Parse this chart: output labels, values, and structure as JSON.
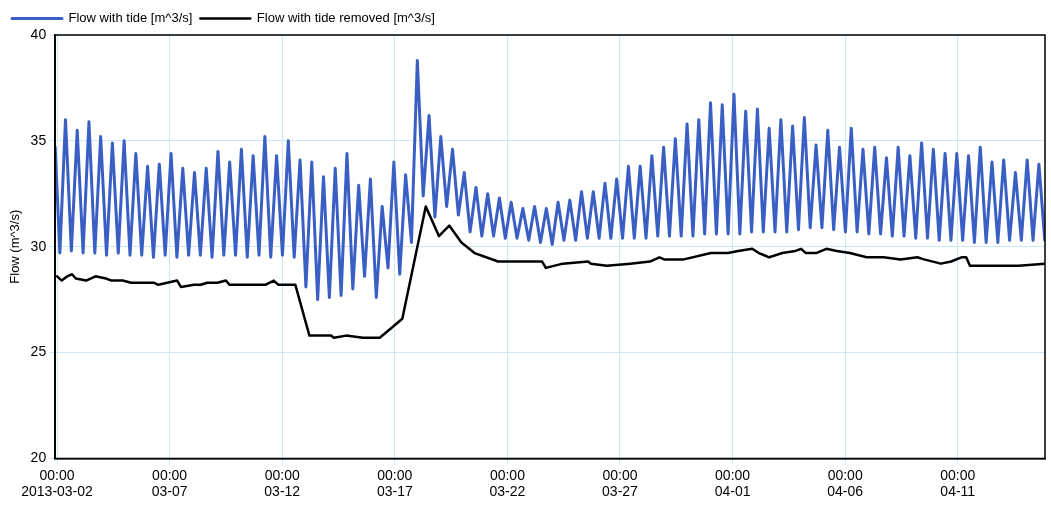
{
  "chart_data": {
    "type": "line",
    "ylabel": "Flow (m^3/s)",
    "xlim": [
      "2013-03-01T22:00",
      "2013-04-14T21:00"
    ],
    "xticks": [
      {
        "value": "2013-03-02",
        "label": "00:00\n2013-03-02"
      },
      {
        "value": "2013-03-07",
        "label": "00:00\n03-07"
      },
      {
        "value": "2013-03-12",
        "label": "00:00\n03-12"
      },
      {
        "value": "2013-03-17",
        "label": "00:00\n03-17"
      },
      {
        "value": "2013-03-22",
        "label": "00:00\n03-22"
      },
      {
        "value": "2013-03-27",
        "label": "00:00\n03-27"
      },
      {
        "value": "2013-04-01",
        "label": "00:00\n04-01"
      },
      {
        "value": "2013-04-06",
        "label": "00:00\n04-06"
      },
      {
        "value": "2013-04-11",
        "label": "00:00\n04-11"
      }
    ],
    "ylim": [
      20,
      40
    ],
    "yticks": [
      20,
      25,
      30,
      35,
      40
    ],
    "grid": true,
    "legend": "top left",
    "marker": "none",
    "line_style": "solid",
    "series": [
      {
        "name": "Flow with tide [m^3/s]",
        "color": "#3a5fc4",
        "x": [
          "2013-03-01T22:00",
          "2013-03-02T03:00",
          "2013-03-02T09:00",
          "2013-03-02T15:15",
          "2013-03-02T21:30",
          "2013-03-03T03:45",
          "2013-03-03T10:00",
          "2013-03-03T16:15",
          "2013-03-03T22:30",
          "2013-03-04T04:45",
          "2013-03-04T11:00",
          "2013-03-04T17:15",
          "2013-03-04T23:30",
          "2013-03-05T05:45",
          "2013-03-05T12:00",
          "2013-03-05T18:15",
          "2013-03-06T00:30",
          "2013-03-06T06:45",
          "2013-03-06T13:00",
          "2013-03-06T19:15",
          "2013-03-07T01:30",
          "2013-03-07T07:45",
          "2013-03-07T14:00",
          "2013-03-07T20:15",
          "2013-03-08T02:30",
          "2013-03-08T08:45",
          "2013-03-08T15:00",
          "2013-03-08T21:15",
          "2013-03-09T03:30",
          "2013-03-09T09:45",
          "2013-03-09T16:00",
          "2013-03-09T22:15",
          "2013-03-10T04:30",
          "2013-03-10T10:45",
          "2013-03-10T17:00",
          "2013-03-10T23:15",
          "2013-03-11T05:30",
          "2013-03-11T11:45",
          "2013-03-11T18:00",
          "2013-03-12T00:15",
          "2013-03-12T06:30",
          "2013-03-12T12:45",
          "2013-03-12T19:00",
          "2013-03-13T01:15",
          "2013-03-13T07:30",
          "2013-03-13T13:45",
          "2013-03-13T20:00",
          "2013-03-14T02:15",
          "2013-03-14T08:30",
          "2013-03-14T14:45",
          "2013-03-14T21:00",
          "2013-03-15T03:15",
          "2013-03-15T09:30",
          "2013-03-15T15:45",
          "2013-03-15T22:00",
          "2013-03-16T04:15",
          "2013-03-16T10:30",
          "2013-03-16T16:45",
          "2013-03-16T23:00",
          "2013-03-17T05:15",
          "2013-03-17T11:30",
          "2013-03-17T17:45",
          "2013-03-18T00:00",
          "2013-03-18T06:15",
          "2013-03-18T12:30",
          "2013-03-18T18:45",
          "2013-03-19T01:00",
          "2013-03-19T07:15",
          "2013-03-19T13:30",
          "2013-03-19T19:45",
          "2013-03-20T02:00",
          "2013-03-20T08:15",
          "2013-03-20T14:30",
          "2013-03-20T20:45",
          "2013-03-21T03:00",
          "2013-03-21T09:15",
          "2013-03-21T15:30",
          "2013-03-21T21:45",
          "2013-03-22T04:00",
          "2013-03-22T10:15",
          "2013-03-22T16:30",
          "2013-03-22T22:45",
          "2013-03-23T05:00",
          "2013-03-23T11:15",
          "2013-03-23T17:30",
          "2013-03-23T23:45",
          "2013-03-24T06:00",
          "2013-03-24T12:15",
          "2013-03-24T18:30",
          "2013-03-25T00:45",
          "2013-03-25T07:00",
          "2013-03-25T13:15",
          "2013-03-25T19:30",
          "2013-03-26T01:45",
          "2013-03-26T08:00",
          "2013-03-26T14:15",
          "2013-03-26T20:30",
          "2013-03-27T02:45",
          "2013-03-27T09:00",
          "2013-03-27T15:15",
          "2013-03-27T21:30",
          "2013-03-28T03:45",
          "2013-03-28T10:00",
          "2013-03-28T16:15",
          "2013-03-28T22:30",
          "2013-03-29T04:45",
          "2013-03-29T11:00",
          "2013-03-29T17:15",
          "2013-03-29T23:30",
          "2013-03-30T05:45",
          "2013-03-30T12:00",
          "2013-03-30T18:15",
          "2013-03-31T00:30",
          "2013-03-31T06:45",
          "2013-03-31T13:00",
          "2013-03-31T19:15",
          "2013-04-01T01:30",
          "2013-04-01T07:45",
          "2013-04-01T14:00",
          "2013-04-01T20:15",
          "2013-04-02T02:30",
          "2013-04-02T08:45",
          "2013-04-02T15:00",
          "2013-04-02T21:15",
          "2013-04-03T03:30",
          "2013-04-03T09:45",
          "2013-04-03T16:00",
          "2013-04-03T22:15",
          "2013-04-04T04:30",
          "2013-04-04T10:45",
          "2013-04-04T17:00",
          "2013-04-04T23:15",
          "2013-04-05T05:30",
          "2013-04-05T11:45",
          "2013-04-05T18:00",
          "2013-04-06T00:15",
          "2013-04-06T06:30",
          "2013-04-06T12:45",
          "2013-04-06T19:00",
          "2013-04-07T01:15",
          "2013-04-07T07:30",
          "2013-04-07T13:45",
          "2013-04-07T20:00",
          "2013-04-08T02:15",
          "2013-04-08T08:30",
          "2013-04-08T14:45",
          "2013-04-08T21:00",
          "2013-04-09T03:15",
          "2013-04-09T09:30",
          "2013-04-09T15:45",
          "2013-04-09T22:00",
          "2013-04-10T04:15",
          "2013-04-10T10:30",
          "2013-04-10T16:45",
          "2013-04-10T23:00",
          "2013-04-11T05:15",
          "2013-04-11T11:30",
          "2013-04-11T17:45",
          "2013-04-12T00:00",
          "2013-04-12T06:15",
          "2013-04-12T12:30",
          "2013-04-12T18:45",
          "2013-04-13T01:00",
          "2013-04-13T07:15",
          "2013-04-13T13:30",
          "2013-04-13T19:45",
          "2013-04-14T02:00",
          "2013-04-14T08:15",
          "2013-04-14T14:30",
          "2013-04-14T20:45"
        ],
        "values": [
          34.7,
          29.7,
          36.0,
          29.8,
          35.5,
          29.7,
          35.9,
          29.7,
          35.2,
          29.6,
          34.9,
          29.7,
          35.0,
          29.6,
          34.4,
          29.6,
          33.8,
          29.5,
          33.9,
          29.6,
          34.4,
          29.5,
          33.7,
          29.6,
          33.5,
          29.6,
          33.7,
          29.5,
          34.5,
          29.6,
          34.0,
          29.6,
          34.6,
          29.5,
          34.3,
          29.6,
          35.2,
          29.5,
          34.3,
          29.6,
          35.0,
          29.5,
          34.1,
          28.1,
          34.0,
          27.5,
          33.3,
          27.6,
          33.7,
          27.7,
          34.4,
          28.0,
          32.9,
          28.6,
          33.2,
          27.6,
          31.9,
          29.0,
          34.0,
          28.7,
          33.4,
          30.2,
          38.8,
          32.4,
          36.2,
          31.4,
          35.2,
          31.9,
          34.6,
          31.5,
          33.5,
          30.7,
          32.8,
          30.5,
          32.5,
          30.5,
          32.3,
          30.4,
          32.1,
          30.4,
          31.8,
          30.3,
          31.9,
          30.2,
          31.8,
          30.1,
          32.1,
          30.3,
          32.2,
          30.3,
          32.6,
          30.4,
          32.6,
          30.4,
          33.0,
          30.4,
          33.2,
          30.4,
          33.8,
          30.4,
          33.8,
          30.4,
          34.3,
          30.5,
          34.7,
          30.5,
          35.1,
          30.5,
          35.8,
          30.5,
          36.0,
          30.6,
          36.8,
          30.6,
          36.7,
          30.6,
          37.2,
          30.6,
          36.4,
          30.7,
          36.5,
          30.7,
          35.6,
          30.7,
          36.0,
          30.7,
          35.7,
          30.8,
          36.1,
          30.9,
          34.8,
          30.9,
          35.5,
          30.8,
          34.7,
          30.7,
          35.6,
          30.7,
          34.6,
          30.6,
          34.7,
          30.6,
          34.2,
          30.5,
          34.7,
          30.5,
          34.3,
          30.4,
          34.9,
          30.4,
          34.6,
          30.3,
          34.4,
          30.3,
          34.4,
          30.3,
          34.3,
          30.2,
          34.7,
          30.2,
          34.0,
          30.2,
          34.1,
          30.3,
          33.5,
          30.3,
          34.1,
          30.3,
          33.9,
          30.3
        ]
      },
      {
        "name": "Flow with tide removed [m^3/s]",
        "color": "#000000",
        "x": [
          "2013-03-02T00:00",
          "2013-03-02T05:00",
          "2013-03-02T11:00",
          "2013-03-02T16:00",
          "2013-03-02T20:00",
          "2013-03-03T07:00",
          "2013-03-03T17:00",
          "2013-03-04T04:00",
          "2013-03-04T10:00",
          "2013-03-04T22:00",
          "2013-03-05T07:00",
          "2013-03-06T07:00",
          "2013-03-06T12:00",
          "2013-03-07T08:00",
          "2013-03-07T12:00",
          "2013-03-08T02:00",
          "2013-03-08T09:00",
          "2013-03-08T16:00",
          "2013-03-09T03:00",
          "2013-03-09T12:00",
          "2013-03-09T16:00",
          "2013-03-11T06:00",
          "2013-03-11T15:00",
          "2013-03-11T20:00",
          "2013-03-12T14:00",
          "2013-03-13T05:00",
          "2013-03-14T04:00",
          "2013-03-14T07:00",
          "2013-03-14T20:00",
          "2013-03-15T14:00",
          "2013-03-16T08:00",
          "2013-03-17T08:00",
          "2013-03-18T09:00",
          "2013-03-18T23:00",
          "2013-03-19T10:00",
          "2013-03-19T23:00",
          "2013-03-20T13:00",
          "2013-03-21T14:00",
          "2013-03-22T16:00",
          "2013-03-23T13:00",
          "2013-03-23T17:00",
          "2013-03-24T11:00",
          "2013-03-25T14:00",
          "2013-03-25T17:00",
          "2013-03-26T10:00",
          "2013-03-27T11:00",
          "2013-03-28T08:00",
          "2013-03-28T18:00",
          "2013-03-28T23:00",
          "2013-03-29T20:00",
          "2013-03-31T01:00",
          "2013-03-31T19:00",
          "2013-04-01T06:00",
          "2013-04-01T21:00",
          "2013-04-02T04:00",
          "2013-04-02T15:00",
          "2013-04-03T05:00",
          "2013-04-03T19:00",
          "2013-04-04T01:00",
          "2013-04-04T06:00",
          "2013-04-04T17:00",
          "2013-04-05T04:00",
          "2013-04-05T15:00",
          "2013-04-06T05:00",
          "2013-04-06T23:00",
          "2013-04-07T17:00",
          "2013-04-08T11:00",
          "2013-04-09T05:00",
          "2013-04-09T12:00",
          "2013-04-10T06:00",
          "2013-04-10T17:00",
          "2013-04-11T04:00",
          "2013-04-11T09:00",
          "2013-04-11T13:00",
          "2013-04-12T23:00",
          "2013-04-13T17:00",
          "2013-04-14T21:00"
        ],
        "values": [
          28.6,
          28.4,
          28.6,
          28.7,
          28.5,
          28.4,
          28.6,
          28.5,
          28.4,
          28.4,
          28.3,
          28.3,
          28.2,
          28.4,
          28.1,
          28.2,
          28.2,
          28.3,
          28.3,
          28.4,
          28.2,
          28.2,
          28.4,
          28.2,
          28.2,
          25.8,
          25.8,
          25.7,
          25.8,
          25.7,
          25.7,
          26.6,
          31.9,
          30.5,
          31.0,
          30.2,
          29.7,
          29.3,
          29.3,
          29.3,
          29.0,
          29.2,
          29.3,
          29.2,
          29.1,
          29.2,
          29.3,
          29.5,
          29.4,
          29.4,
          29.7,
          29.7,
          29.8,
          29.9,
          29.7,
          29.5,
          29.7,
          29.8,
          29.9,
          29.7,
          29.7,
          29.9,
          29.8,
          29.7,
          29.5,
          29.5,
          29.4,
          29.5,
          29.4,
          29.2,
          29.3,
          29.5,
          29.5,
          29.1,
          29.1,
          29.1,
          29.2
        ]
      }
    ]
  }
}
